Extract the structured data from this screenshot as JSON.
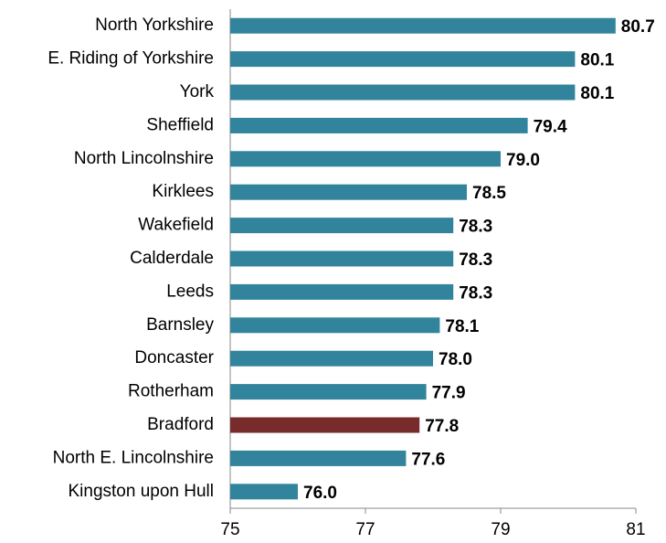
{
  "chart_data": {
    "type": "barh",
    "categories": [
      "North Yorkshire",
      "E. Riding of Yorkshire",
      "York",
      "Sheffield",
      "North Lincolnshire",
      "Kirklees",
      "Wakefield",
      "Calderdale",
      "Leeds",
      "Barnsley",
      "Doncaster",
      "Rotherham",
      "Bradford",
      "North E. Lincolnshire",
      "Kingston upon Hull"
    ],
    "values": [
      80.7,
      80.1,
      80.1,
      79.4,
      79.0,
      78.5,
      78.3,
      78.3,
      78.3,
      78.1,
      78.0,
      77.9,
      77.8,
      77.6,
      76.0
    ],
    "value_labels": [
      "80.7",
      "80.1",
      "80.1",
      "79.4",
      "79.0",
      "78.5",
      "78.3",
      "78.3",
      "78.3",
      "78.1",
      "78.0",
      "77.9",
      "77.8",
      "77.6",
      "76.0"
    ],
    "colors": [
      "#31849b",
      "#31849b",
      "#31849b",
      "#31849b",
      "#31849b",
      "#31849b",
      "#31849b",
      "#31849b",
      "#31849b",
      "#31849b",
      "#31849b",
      "#31849b",
      "#772b2b",
      "#31849b",
      "#31849b"
    ],
    "xlim": [
      75,
      81
    ],
    "xticks": [
      75,
      77,
      79,
      81
    ]
  }
}
